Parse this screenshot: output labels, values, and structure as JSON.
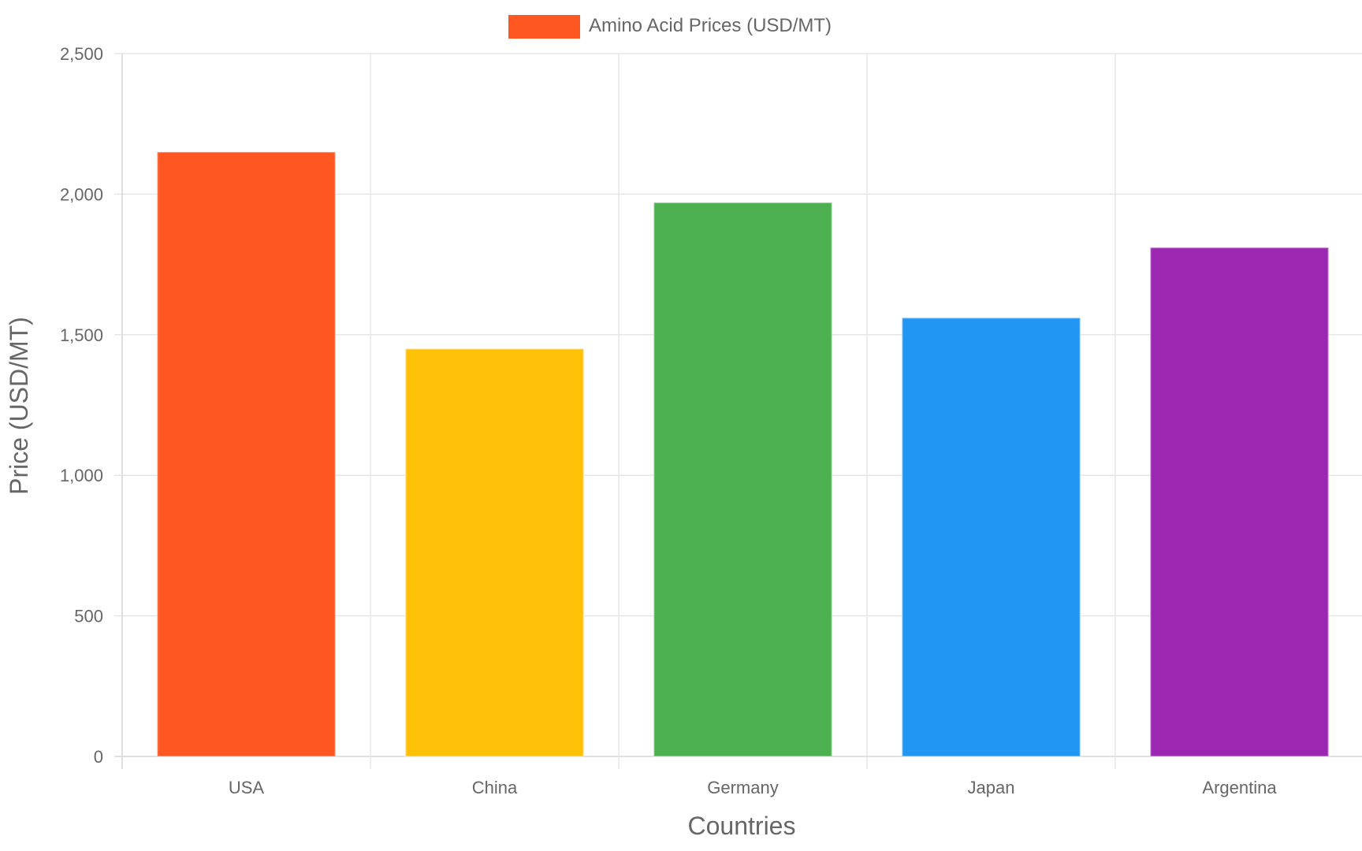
{
  "chart_data": {
    "type": "bar",
    "title": "",
    "categories": [
      "USA",
      "China",
      "Germany",
      "Japan",
      "Argentina"
    ],
    "series": [
      {
        "name": "Amino Acid Prices (USD/MT)",
        "values": [
          2150,
          1450,
          1970,
          1560,
          1810
        ],
        "colors": [
          "#FF5722",
          "#FFC107",
          "#4CAF50",
          "#2196F3",
          "#9C27B0"
        ]
      }
    ],
    "xlabel": "Countries",
    "ylabel": "Price (USD/MT)",
    "ylim": [
      0,
      2500
    ],
    "yticks": [
      "0",
      "500",
      "1,000",
      "1,500",
      "2,000",
      "2,500"
    ],
    "grid": true,
    "legend_position": "top-center",
    "legend_color": "#FF5722"
  }
}
